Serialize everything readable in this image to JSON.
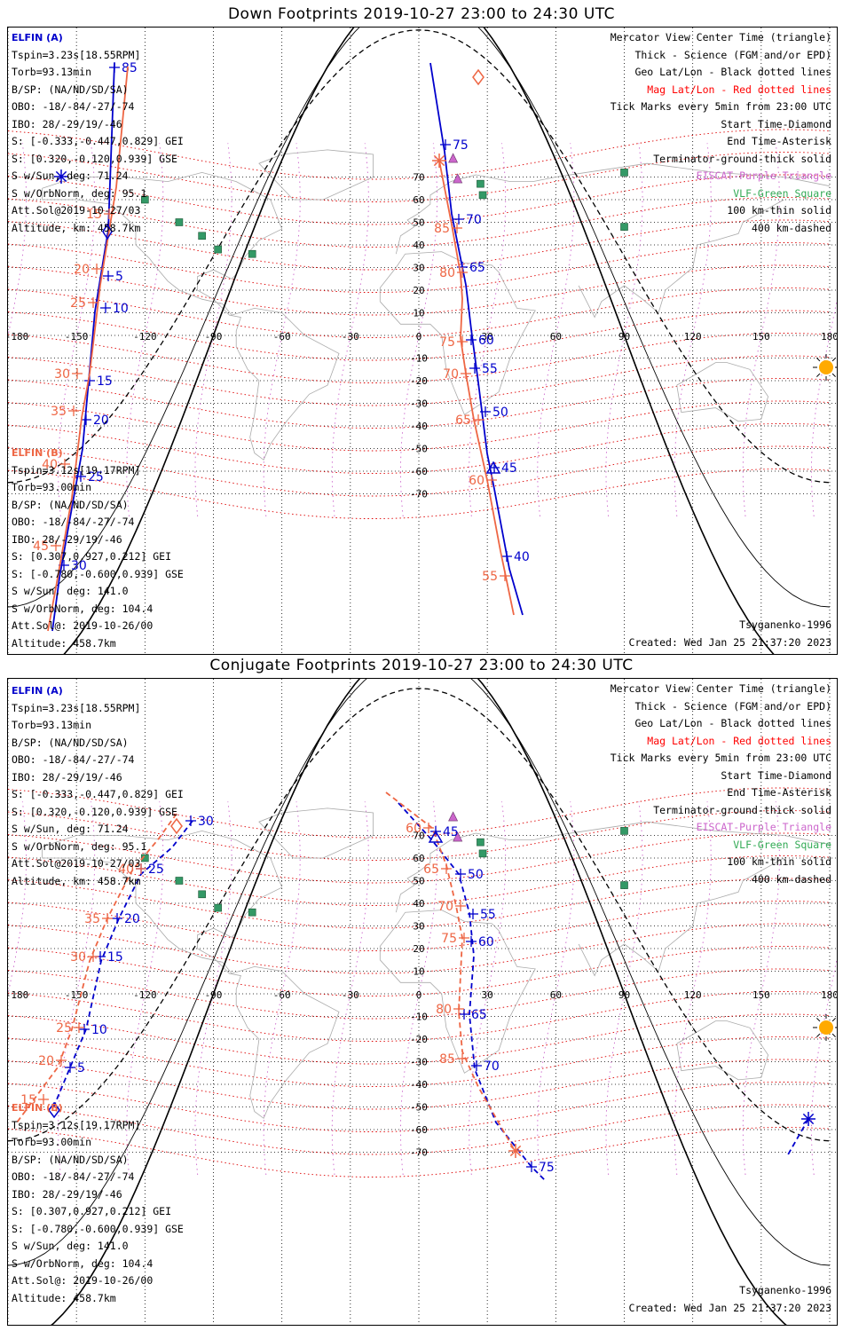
{
  "panels": [
    {
      "title": "Down Footprints 2019-10-27 23:00 to 24:30 UTC",
      "mode": "down",
      "elfin_a": {
        "label": "ELFIN (A)",
        "lines": [
          "Tspin=3.23s[18.55RPM]",
          "Torb=93.13min",
          "B/SP: (NA/ND/SD/SA)",
          "OBO: -18/-84/-27/-74",
          "IBO: 28/-29/19/-46",
          "S: [-0.333,-0.447,0.829] GEI",
          "S: [0.320,-0.120,0.939] GSE",
          "S w/Sun, deg: 71.24",
          "S w/OrbNorm, deg: 95.1",
          "Att.Sol@2019-10-27/03",
          "Altitude, km: 458.7km"
        ]
      },
      "elfin_b": {
        "label": "ELFIN (B)",
        "lines": [
          "Tspin=3.12s[19.17RPM]",
          "Torb=93.00min",
          "B/SP: (NA/ND/SD/SA)",
          "OBO: -18/-84/-27/-74",
          "IBO: 28/-29/19/-46",
          "S: [0.307,0.927,0.212] GEI",
          "S: [-0.780,-0.600,0.939] GSE",
          "S w/Sun, deg: 141.0",
          "S w/OrbNorm, deg: 104.4",
          "Att.Sol@: 2019-10-26/00",
          "Altitude: 458.7km"
        ]
      },
      "track_a": [
        {
          "lon": -147,
          "lat": 84,
          "min": null
        },
        {
          "lon": -152,
          "lat": 68,
          "min": null
        },
        {
          "lon": -140,
          "lat": 48,
          "min": null
        },
        {
          "lon": -140,
          "lat": 35,
          "min": 5
        },
        {
          "lon": -142,
          "lat": 25,
          "min": 10
        },
        {
          "lon": -147,
          "lat": -5,
          "min": 15
        },
        {
          "lon": -150,
          "lat": -10,
          "min": 20
        },
        {
          "lon": -156,
          "lat": -15,
          "min": 25
        },
        {
          "lon": -160,
          "lat": -35,
          "min": 30
        }
      ],
      "track_a2": [
        {
          "lon": 7,
          "lat": 86,
          "min": null
        },
        {
          "lon": 14,
          "lat": 75,
          "min": 75
        },
        {
          "lon": 20,
          "lat": 57,
          "min": 70
        },
        {
          "lon": 25,
          "lat": 40,
          "min": 65
        },
        {
          "lon": 28,
          "lat": 10,
          "min": 60
        },
        {
          "lon": 30,
          "lat": -10,
          "min": 55
        },
        {
          "lon": 35,
          "lat": -35,
          "min": 50
        },
        {
          "lon": 40,
          "lat": -60,
          "min": 45
        },
        {
          "lon": 45,
          "lat": -90,
          "min": 40
        },
        {
          "lon": 50,
          "lat": -110,
          "min": null
        }
      ],
      "track_b": [
        {
          "lon": -135,
          "lat": 88,
          "min": null
        },
        {
          "lon": -140,
          "lat": 65,
          "min": 15
        },
        {
          "lon": -148,
          "lat": 38,
          "min": 20
        },
        {
          "lon": -153,
          "lat": 18,
          "min": 25
        },
        {
          "lon": -157,
          "lat": -25,
          "min": 30
        },
        {
          "lon": -160,
          "lat": -38,
          "min": 35
        },
        {
          "lon": -165,
          "lat": -58,
          "min": 40
        },
        {
          "lon": -170,
          "lat": -90,
          "min": 45
        }
      ],
      "track_b2": [
        {
          "lon": 13,
          "lat": 63,
          "min": null
        },
        {
          "lon": 16,
          "lat": 50,
          "min": 85
        },
        {
          "lon": 21,
          "lat": 30,
          "min": 80
        },
        {
          "lon": 23,
          "lat": 20,
          "min": null
        },
        {
          "lon": 22,
          "lat": -2,
          "min": 75
        },
        {
          "lon": 25,
          "lat": -20,
          "min": 70
        },
        {
          "lon": 30,
          "lat": -40,
          "min": 65
        },
        {
          "lon": 36,
          "lat": -70,
          "min": 60
        },
        {
          "lon": 43,
          "lat": -100,
          "min": 55
        },
        {
          "lon": 46,
          "lat": -110,
          "min": null
        }
      ],
      "ticks_a": [
        {
          "lon": -145,
          "lat": 84,
          "text": "85"
        },
        {
          "lon": -140,
          "lat": 34,
          "text": "5"
        },
        {
          "lon": -141,
          "lat": 14,
          "text": "10"
        },
        {
          "lon": -148,
          "lat": -12,
          "text": "15"
        },
        {
          "lon": -152,
          "lat": -25,
          "text": "20"
        },
        {
          "lon": -159,
          "lat": -41,
          "text": "25"
        },
        {
          "lon": -164,
          "lat": -77,
          "text": "30"
        }
      ],
      "ticks_a2": [
        {
          "lon": 17,
          "lat": 71,
          "text": "75"
        },
        {
          "lon": 22,
          "lat": 50,
          "text": "70"
        },
        {
          "lon": 26,
          "lat": 35,
          "text": "65"
        },
        {
          "lon": 28,
          "lat": 5,
          "text": "60"
        },
        {
          "lon": 31,
          "lat": -10,
          "text": "55"
        },
        {
          "lon": 36,
          "lat": -27,
          "text": "50"
        },
        {
          "lon": 40,
          "lat": -48,
          "text": "45"
        },
        {
          "lon": 46,
          "lat": -81,
          "text": "40"
        }
      ],
      "ticks_b": [
        {
          "lon": -160,
          "lat": 65,
          "text": "15"
        },
        {
          "lon": -165,
          "lat": 38,
          "text": "20"
        },
        {
          "lon": -170,
          "lat": 22,
          "text": "25"
        },
        {
          "lon": -173,
          "lat": -14,
          "text": "30"
        },
        {
          "lon": -175,
          "lat": -28,
          "text": "35"
        },
        {
          "lon": -180,
          "lat": -49,
          "text": "40"
        },
        {
          "lon": -184,
          "lat": -76,
          "text": "45"
        }
      ],
      "ticks_b2": [
        {
          "lon": 6,
          "lat": 47,
          "text": "85"
        },
        {
          "lon": 8,
          "lat": 28,
          "text": "80"
        },
        {
          "lon": 12,
          "lat": 0,
          "text": "75"
        },
        {
          "lon": 17,
          "lat": -17,
          "text": "70"
        },
        {
          "lon": 19,
          "lat": -32,
          "text": "65"
        },
        {
          "lon": 24,
          "lat": -56,
          "text": "60"
        },
        {
          "lon": 30,
          "lat": -92,
          "text": "55"
        }
      ],
      "start_a": {
        "lon": -140,
        "lat": 48
      },
      "start_b": {
        "lon": 36,
        "lat": 80
      },
      "end_b": {
        "lon": 13,
        "lat": 63
      },
      "center_a": {
        "lon": 40,
        "lat": -52
      },
      "sun": {
        "lon": 180,
        "lat": -13
      }
    },
    {
      "title": "Conjugate Footprints 2019-10-27 23:00 to 24:30 UTC",
      "mode": "conjugate",
      "elfin_a": {
        "label": "ELFIN (A)",
        "lines": [
          "Tspin=3.23s[18.55RPM]",
          "Torb=93.13min",
          "B/SP: (NA/ND/SD/SA)",
          "OBO: -18/-84/-27/-74",
          "IBO: 28/-29/19/-46",
          "S: [-0.333,-0.447,0.829] GEI",
          "S: [0.320,-0.120,0.939] GSE",
          "S w/Sun, deg: 71.24",
          "S w/OrbNorm, deg: 95.1",
          "Att.Sol@2019-10-27/03",
          "Altitude, km: 458.7km"
        ]
      },
      "elfin_b": {
        "label": "ELFIN (B)",
        "lines": [
          "Tspin=3.12s[19.17RPM]",
          "Torb=93.00min",
          "B/SP: (NA/ND/SD/SA)",
          "OBO: -18/-84/-27/-74",
          "IBO: 28/-29/19/-46",
          "S: [0.307,0.927,0.212] GEI",
          "S: [-0.780,-0.600,0.939] GSE",
          "S w/Sun, deg: 141.0",
          "S w/OrbNorm, deg: 104.4",
          "Att.Sol@: 2019-10-26/00",
          "Altitude: 458.7km"
        ]
      },
      "ticks_a": [
        {
          "text": "30"
        },
        {
          "text": "25"
        },
        {
          "text": "20"
        },
        {
          "text": "15"
        },
        {
          "text": "10"
        },
        {
          "text": "5"
        }
      ],
      "ticks_a2": [
        {
          "text": "45"
        },
        {
          "text": "50"
        },
        {
          "text": "55"
        },
        {
          "text": "60"
        },
        {
          "text": "65"
        },
        {
          "text": "70"
        },
        {
          "text": "75"
        }
      ],
      "ticks_b": [
        {
          "text": "40"
        },
        {
          "text": "35"
        },
        {
          "text": "30"
        },
        {
          "text": "25"
        },
        {
          "text": "20"
        },
        {
          "text": "15"
        }
      ],
      "ticks_b2": [
        {
          "text": "60"
        },
        {
          "text": "65"
        },
        {
          "text": "70"
        },
        {
          "text": "75"
        },
        {
          "text": "80"
        },
        {
          "text": "85"
        }
      ]
    }
  ],
  "legend": [
    {
      "text": "Mercator View Center Time (triangle)",
      "color": "#000000"
    },
    {
      "text": "Thick - Science (FGM and/or EPD)",
      "color": "#000000"
    },
    {
      "text": "Geo Lat/Lon - Black dotted lines",
      "color": "#000000"
    },
    {
      "text": "Mag Lat/Lon - Red dotted lines",
      "color": "#ff0000"
    },
    {
      "text": "Tick Marks every 5min from 23:00 UTC",
      "color": "#000000"
    },
    {
      "text": "Start Time-Diamond",
      "color": "#000000"
    },
    {
      "text": "End Time-Asterisk",
      "color": "#000000"
    },
    {
      "text": "Terminator-ground-thick solid",
      "color": "#000000"
    },
    {
      "text": "EISCAT-Purple Triangle",
      "color": "#cc66cc"
    },
    {
      "text": "VLF-Green Square",
      "color": "#33aa55"
    },
    {
      "text": "100 km-thin solid",
      "color": "#000000"
    },
    {
      "text": "400 km-dashed",
      "color": "#000000"
    }
  ],
  "footer": {
    "model": "Tsyganenko-1996",
    "created": "Created: Wed Jan 25 21:37:20 2023"
  },
  "axis": {
    "lon_ticks": [
      -180,
      -150,
      -120,
      -90,
      -60,
      -30,
      0,
      30,
      60,
      90,
      120,
      150,
      180
    ],
    "lon_labels": [
      "-180",
      "-150",
      "-120",
      "-90",
      "-60",
      "-30",
      "0",
      "30",
      "60",
      "90",
      "120",
      "150",
      "180"
    ],
    "lat_ticks": [
      70,
      60,
      50,
      40,
      30,
      20,
      10,
      -10,
      -20,
      -30,
      -40,
      -50,
      -60,
      -70
    ],
    "lat_labels": [
      "70",
      "60",
      "50",
      "40",
      "30",
      "20",
      "10",
      "-10",
      "-20",
      "-30",
      "-40",
      "-50",
      "-60",
      "-70"
    ]
  },
  "colors": {
    "elfin_a": "#0000cc",
    "elfin_b": "#ee6644",
    "mag_grid": "#dd0000",
    "geo_grid": "#000000",
    "eiscat": "#cc66cc",
    "vlf": "#339966",
    "sun": "#ffaa00"
  }
}
